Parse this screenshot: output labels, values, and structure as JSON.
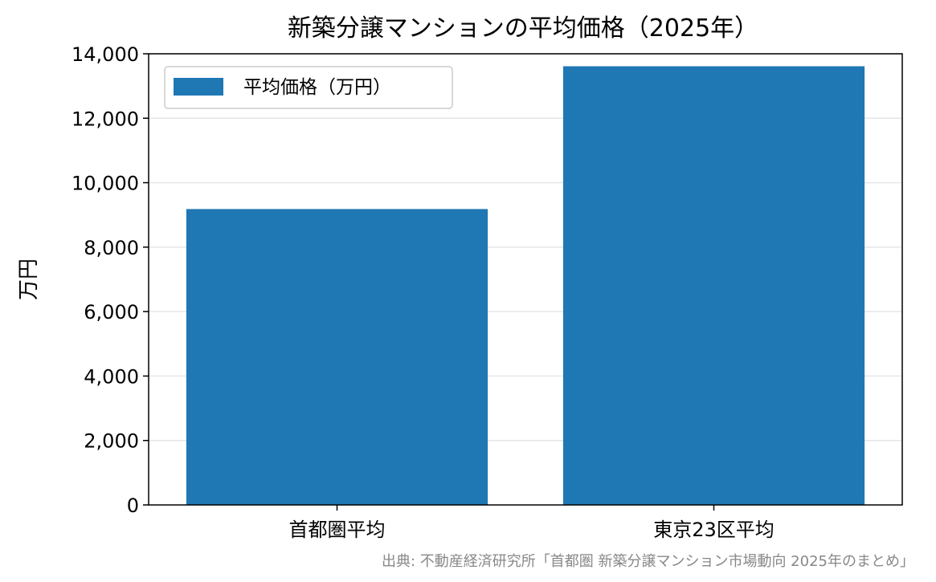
{
  "chart_data": {
    "type": "bar",
    "title": "新築分譲マンションの平均価格（2025年）",
    "categories": [
      "首都圏平均",
      "東京23区平均"
    ],
    "series": [
      {
        "name": "平均価格（万円）",
        "values": [
          9182,
          13613
        ]
      }
    ],
    "xlabel": "",
    "ylabel": "万円",
    "ylim": [
      0,
      14000
    ],
    "yticks": [
      0,
      2000,
      4000,
      6000,
      8000,
      10000,
      12000,
      14000
    ],
    "ytick_labels": [
      "0",
      "2,000",
      "4,000",
      "6,000",
      "8,000",
      "10,000",
      "12,000",
      "14,000"
    ],
    "grid": "y",
    "legend_position": "top-left",
    "bar_color": "#1f77b4"
  },
  "source_note": "出典: 不動産経済研究所「首都圏 新築分譲マンション市場動向 2025年のまとめ」"
}
